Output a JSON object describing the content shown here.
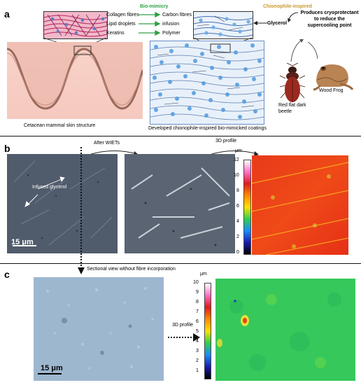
{
  "panel_labels": {
    "a": "a",
    "b": "b",
    "c": "c"
  },
  "section_a": {
    "biomimicry_title": "Bio-mimicry",
    "chionophile_title": "Chionophile-inspired",
    "left_box_items": [
      "Collagen fibres",
      "Lipid droplets",
      "Keratins"
    ],
    "right_box_items": [
      "Carbon fibres",
      "infusion",
      "Polymer"
    ],
    "glycerol": "Glycerol",
    "produces_text": "Produces cryoprotectant to reduce the supercooling point",
    "cetacean_caption": "Cetacean mammal skin structure",
    "coating_caption": "Developed chionophile-inspired bio-mimicked coatings",
    "beetle_label": "Red flat dark beetle",
    "frog_label": "Wood Frog",
    "colors": {
      "green": "#2ea043",
      "gold": "#c89a2e",
      "skin": "#f3c7be",
      "fibre_pink": "#e06a9a",
      "coating_blue": "#3f8fd8"
    }
  },
  "section_b": {
    "after_wiets": "After WIETs",
    "profile_3d": "3D profile",
    "infused_glycerol": "Infused glycerol",
    "scale_bar": "15 μm",
    "colorbar_unit": "μm",
    "colorbar_ticks": [
      "12",
      "10",
      "8",
      "6",
      "4",
      "2",
      "0"
    ]
  },
  "section_c": {
    "sectional_view": "Sectional view without fibre incorporation",
    "profile_3d": "3D profile",
    "scale_bar": "15 μm",
    "colorbar_unit": "μm",
    "colorbar_ticks": [
      "10",
      "9",
      "8",
      "7",
      "6",
      "5",
      "4",
      "3",
      "2",
      "1"
    ]
  }
}
